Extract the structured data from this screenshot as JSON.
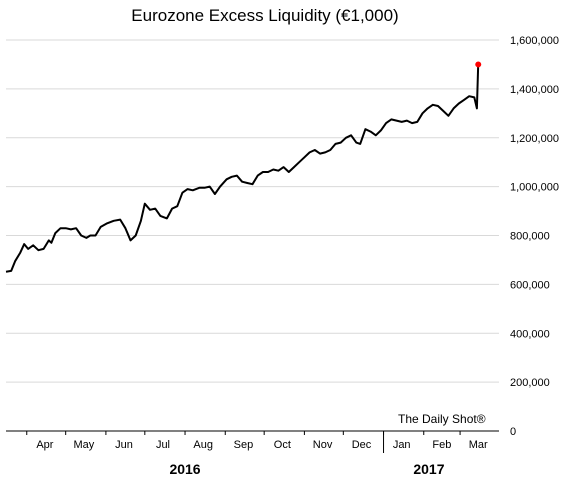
{
  "chart_data": {
    "type": "line",
    "title": "Eurozone Excess Liquidity (€1,000)",
    "xlabel": "",
    "ylabel": "",
    "ylim": [
      0,
      1600000
    ],
    "yticks": [
      0,
      200000,
      400000,
      600000,
      800000,
      1000000,
      1200000,
      1400000,
      1600000
    ],
    "ytick_labels": [
      "0",
      "200,000",
      "400,000",
      "600,000",
      "800,000",
      "1,000,000",
      "1,200,000",
      "1,400,000",
      "1,600,000"
    ],
    "y_axis_side": "right",
    "grid": "horizontal",
    "xlim": [
      "2016-03-16",
      "2017-03-31"
    ],
    "month_ticks": [
      {
        "label": "Apr",
        "date": "2016-04-15"
      },
      {
        "label": "May",
        "date": "2016-05-15"
      },
      {
        "label": "Jun",
        "date": "2016-06-15"
      },
      {
        "label": "Jul",
        "date": "2016-07-15"
      },
      {
        "label": "Aug",
        "date": "2016-08-15"
      },
      {
        "label": "Sep",
        "date": "2016-09-15"
      },
      {
        "label": "Oct",
        "date": "2016-10-15"
      },
      {
        "label": "Nov",
        "date": "2016-11-15"
      },
      {
        "label": "Dec",
        "date": "2016-12-15"
      },
      {
        "label": "Jan",
        "date": "2017-01-15"
      },
      {
        "label": "Feb",
        "date": "2017-02-15"
      },
      {
        "label": "Mar",
        "date": "2017-03-15"
      }
    ],
    "year_labels": [
      {
        "label": "2016",
        "date": "2016-08-01"
      },
      {
        "label": "2017",
        "date": "2017-02-05"
      }
    ],
    "year_divider": "2017-01-01",
    "series": [
      {
        "color": "#000000",
        "points": [
          [
            "2016-03-16",
            652000
          ],
          [
            "2016-03-20",
            655000
          ],
          [
            "2016-03-23",
            695000
          ],
          [
            "2016-03-27",
            730000
          ],
          [
            "2016-03-30",
            765000
          ],
          [
            "2016-04-02",
            745000
          ],
          [
            "2016-04-06",
            760000
          ],
          [
            "2016-04-10",
            740000
          ],
          [
            "2016-04-14",
            745000
          ],
          [
            "2016-04-18",
            780000
          ],
          [
            "2016-04-20",
            770000
          ],
          [
            "2016-04-23",
            810000
          ],
          [
            "2016-04-27",
            830000
          ],
          [
            "2016-05-01",
            830000
          ],
          [
            "2016-05-05",
            825000
          ],
          [
            "2016-05-09",
            830000
          ],
          [
            "2016-05-13",
            800000
          ],
          [
            "2016-05-17",
            790000
          ],
          [
            "2016-05-20",
            800000
          ],
          [
            "2016-05-24",
            800000
          ],
          [
            "2016-05-28",
            835000
          ],
          [
            "2016-06-02",
            850000
          ],
          [
            "2016-06-07",
            860000
          ],
          [
            "2016-06-12",
            865000
          ],
          [
            "2016-06-16",
            830000
          ],
          [
            "2016-06-20",
            780000
          ],
          [
            "2016-06-24",
            800000
          ],
          [
            "2016-06-28",
            860000
          ],
          [
            "2016-07-01",
            930000
          ],
          [
            "2016-07-05",
            905000
          ],
          [
            "2016-07-09",
            910000
          ],
          [
            "2016-07-13",
            880000
          ],
          [
            "2016-07-18",
            870000
          ],
          [
            "2016-07-22",
            910000
          ],
          [
            "2016-07-26",
            920000
          ],
          [
            "2016-07-30",
            975000
          ],
          [
            "2016-08-03",
            990000
          ],
          [
            "2016-08-07",
            985000
          ],
          [
            "2016-08-12",
            995000
          ],
          [
            "2016-08-16",
            995000
          ],
          [
            "2016-08-20",
            1000000
          ],
          [
            "2016-08-24",
            970000
          ],
          [
            "2016-08-28",
            1000000
          ],
          [
            "2016-09-02",
            1030000
          ],
          [
            "2016-09-06",
            1040000
          ],
          [
            "2016-09-10",
            1045000
          ],
          [
            "2016-09-14",
            1020000
          ],
          [
            "2016-09-18",
            1015000
          ],
          [
            "2016-09-22",
            1010000
          ],
          [
            "2016-09-26",
            1045000
          ],
          [
            "2016-09-30",
            1060000
          ],
          [
            "2016-10-04",
            1060000
          ],
          [
            "2016-10-08",
            1070000
          ],
          [
            "2016-10-12",
            1065000
          ],
          [
            "2016-10-16",
            1080000
          ],
          [
            "2016-10-20",
            1060000
          ],
          [
            "2016-10-24",
            1080000
          ],
          [
            "2016-10-28",
            1100000
          ],
          [
            "2016-11-01",
            1120000
          ],
          [
            "2016-11-05",
            1140000
          ],
          [
            "2016-11-09",
            1150000
          ],
          [
            "2016-11-13",
            1135000
          ],
          [
            "2016-11-17",
            1140000
          ],
          [
            "2016-11-21",
            1150000
          ],
          [
            "2016-11-25",
            1175000
          ],
          [
            "2016-11-29",
            1180000
          ],
          [
            "2016-12-03",
            1200000
          ],
          [
            "2016-12-07",
            1210000
          ],
          [
            "2016-12-11",
            1180000
          ],
          [
            "2016-12-14",
            1175000
          ],
          [
            "2016-12-18",
            1235000
          ],
          [
            "2016-12-22",
            1225000
          ],
          [
            "2016-12-26",
            1210000
          ],
          [
            "2016-12-30",
            1230000
          ],
          [
            "2017-01-03",
            1260000
          ],
          [
            "2017-01-07",
            1275000
          ],
          [
            "2017-01-11",
            1270000
          ],
          [
            "2017-01-15",
            1265000
          ],
          [
            "2017-01-19",
            1270000
          ],
          [
            "2017-01-23",
            1260000
          ],
          [
            "2017-01-27",
            1265000
          ],
          [
            "2017-01-31",
            1300000
          ],
          [
            "2017-02-04",
            1320000
          ],
          [
            "2017-02-08",
            1335000
          ],
          [
            "2017-02-12",
            1330000
          ],
          [
            "2017-02-16",
            1310000
          ],
          [
            "2017-02-20",
            1290000
          ],
          [
            "2017-02-24",
            1320000
          ],
          [
            "2017-02-28",
            1340000
          ],
          [
            "2017-03-04",
            1355000
          ],
          [
            "2017-03-08",
            1370000
          ],
          [
            "2017-03-12",
            1365000
          ],
          [
            "2017-03-14",
            1320000
          ],
          [
            "2017-03-15",
            1500000
          ]
        ]
      }
    ],
    "highlight_point": {
      "date": "2017-03-15",
      "value": 1500000,
      "color": "#ff0000"
    },
    "watermark": "The Daily Shot®"
  }
}
